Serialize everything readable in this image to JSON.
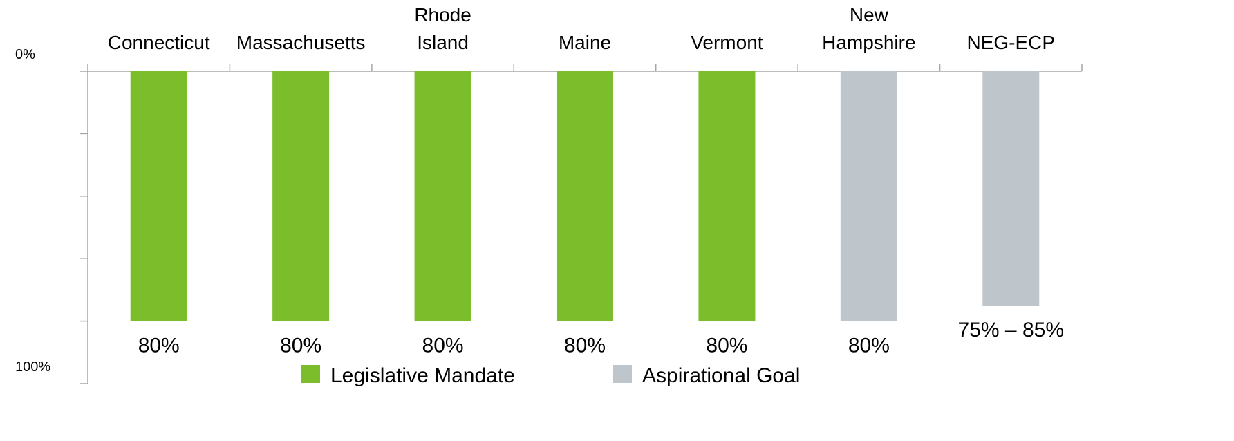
{
  "chart_data": {
    "type": "bar",
    "categories": [
      "Connecticut",
      "Massachusetts",
      "Rhode\nIsland",
      "Maine",
      "Vermont",
      "New\nHampshire",
      "NEG-ECP"
    ],
    "series": [
      {
        "name": "Legislative Mandate",
        "color": "#7cbd2c",
        "values": [
          80,
          80,
          80,
          80,
          80,
          null,
          null
        ],
        "value_labels": [
          "80%",
          "80%",
          "80%",
          "80%",
          "80%",
          null,
          null
        ]
      },
      {
        "name": "Aspirational Goal",
        "color": "#bec5cb",
        "values": [
          null,
          null,
          null,
          null,
          null,
          80,
          75
        ],
        "value_labels": [
          null,
          null,
          null,
          null,
          null,
          "80%",
          "75% – 85%"
        ]
      }
    ],
    "ylim": [
      0,
      100
    ],
    "inverted_y": true,
    "yticks": [
      {
        "value": 0,
        "label": "0%"
      },
      {
        "value": 100,
        "label": "100%"
      }
    ],
    "minor_yticks": [
      20,
      40,
      60,
      80
    ],
    "legend": "bottom"
  }
}
